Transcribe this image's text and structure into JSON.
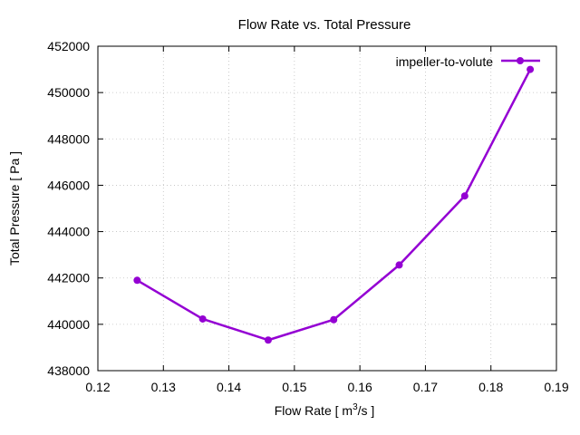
{
  "chart_data": {
    "type": "line",
    "title": "Flow Rate vs. Total Pressure",
    "xlabel_text": "Flow Rate [ m",
    "xlabel_sup": "3",
    "xlabel_suffix": "/s ]",
    "ylabel": "Total Pressure [ Pa ]",
    "xlim": [
      0.12,
      0.19
    ],
    "ylim": [
      438000,
      452000
    ],
    "xticks": [
      0.12,
      0.13,
      0.14,
      0.15,
      0.16,
      0.17,
      0.18,
      0.19
    ],
    "xtick_labels": [
      "0.12",
      "0.13",
      "0.14",
      "0.15",
      "0.16",
      "0.17",
      "0.18",
      "0.19"
    ],
    "yticks": [
      438000,
      440000,
      442000,
      444000,
      446000,
      448000,
      450000,
      452000
    ],
    "ytick_labels": [
      "438000",
      "440000",
      "442000",
      "444000",
      "446000",
      "448000",
      "450000",
      "452000"
    ],
    "grid": true,
    "legend_position": "top-right",
    "series": [
      {
        "name": "impeller-to-volute",
        "color": "#9400d3",
        "x": [
          0.126,
          0.136,
          0.146,
          0.156,
          0.166,
          0.176,
          0.186
        ],
        "y": [
          441900,
          440230,
          439320,
          440200,
          442560,
          445540,
          451000
        ]
      }
    ]
  }
}
